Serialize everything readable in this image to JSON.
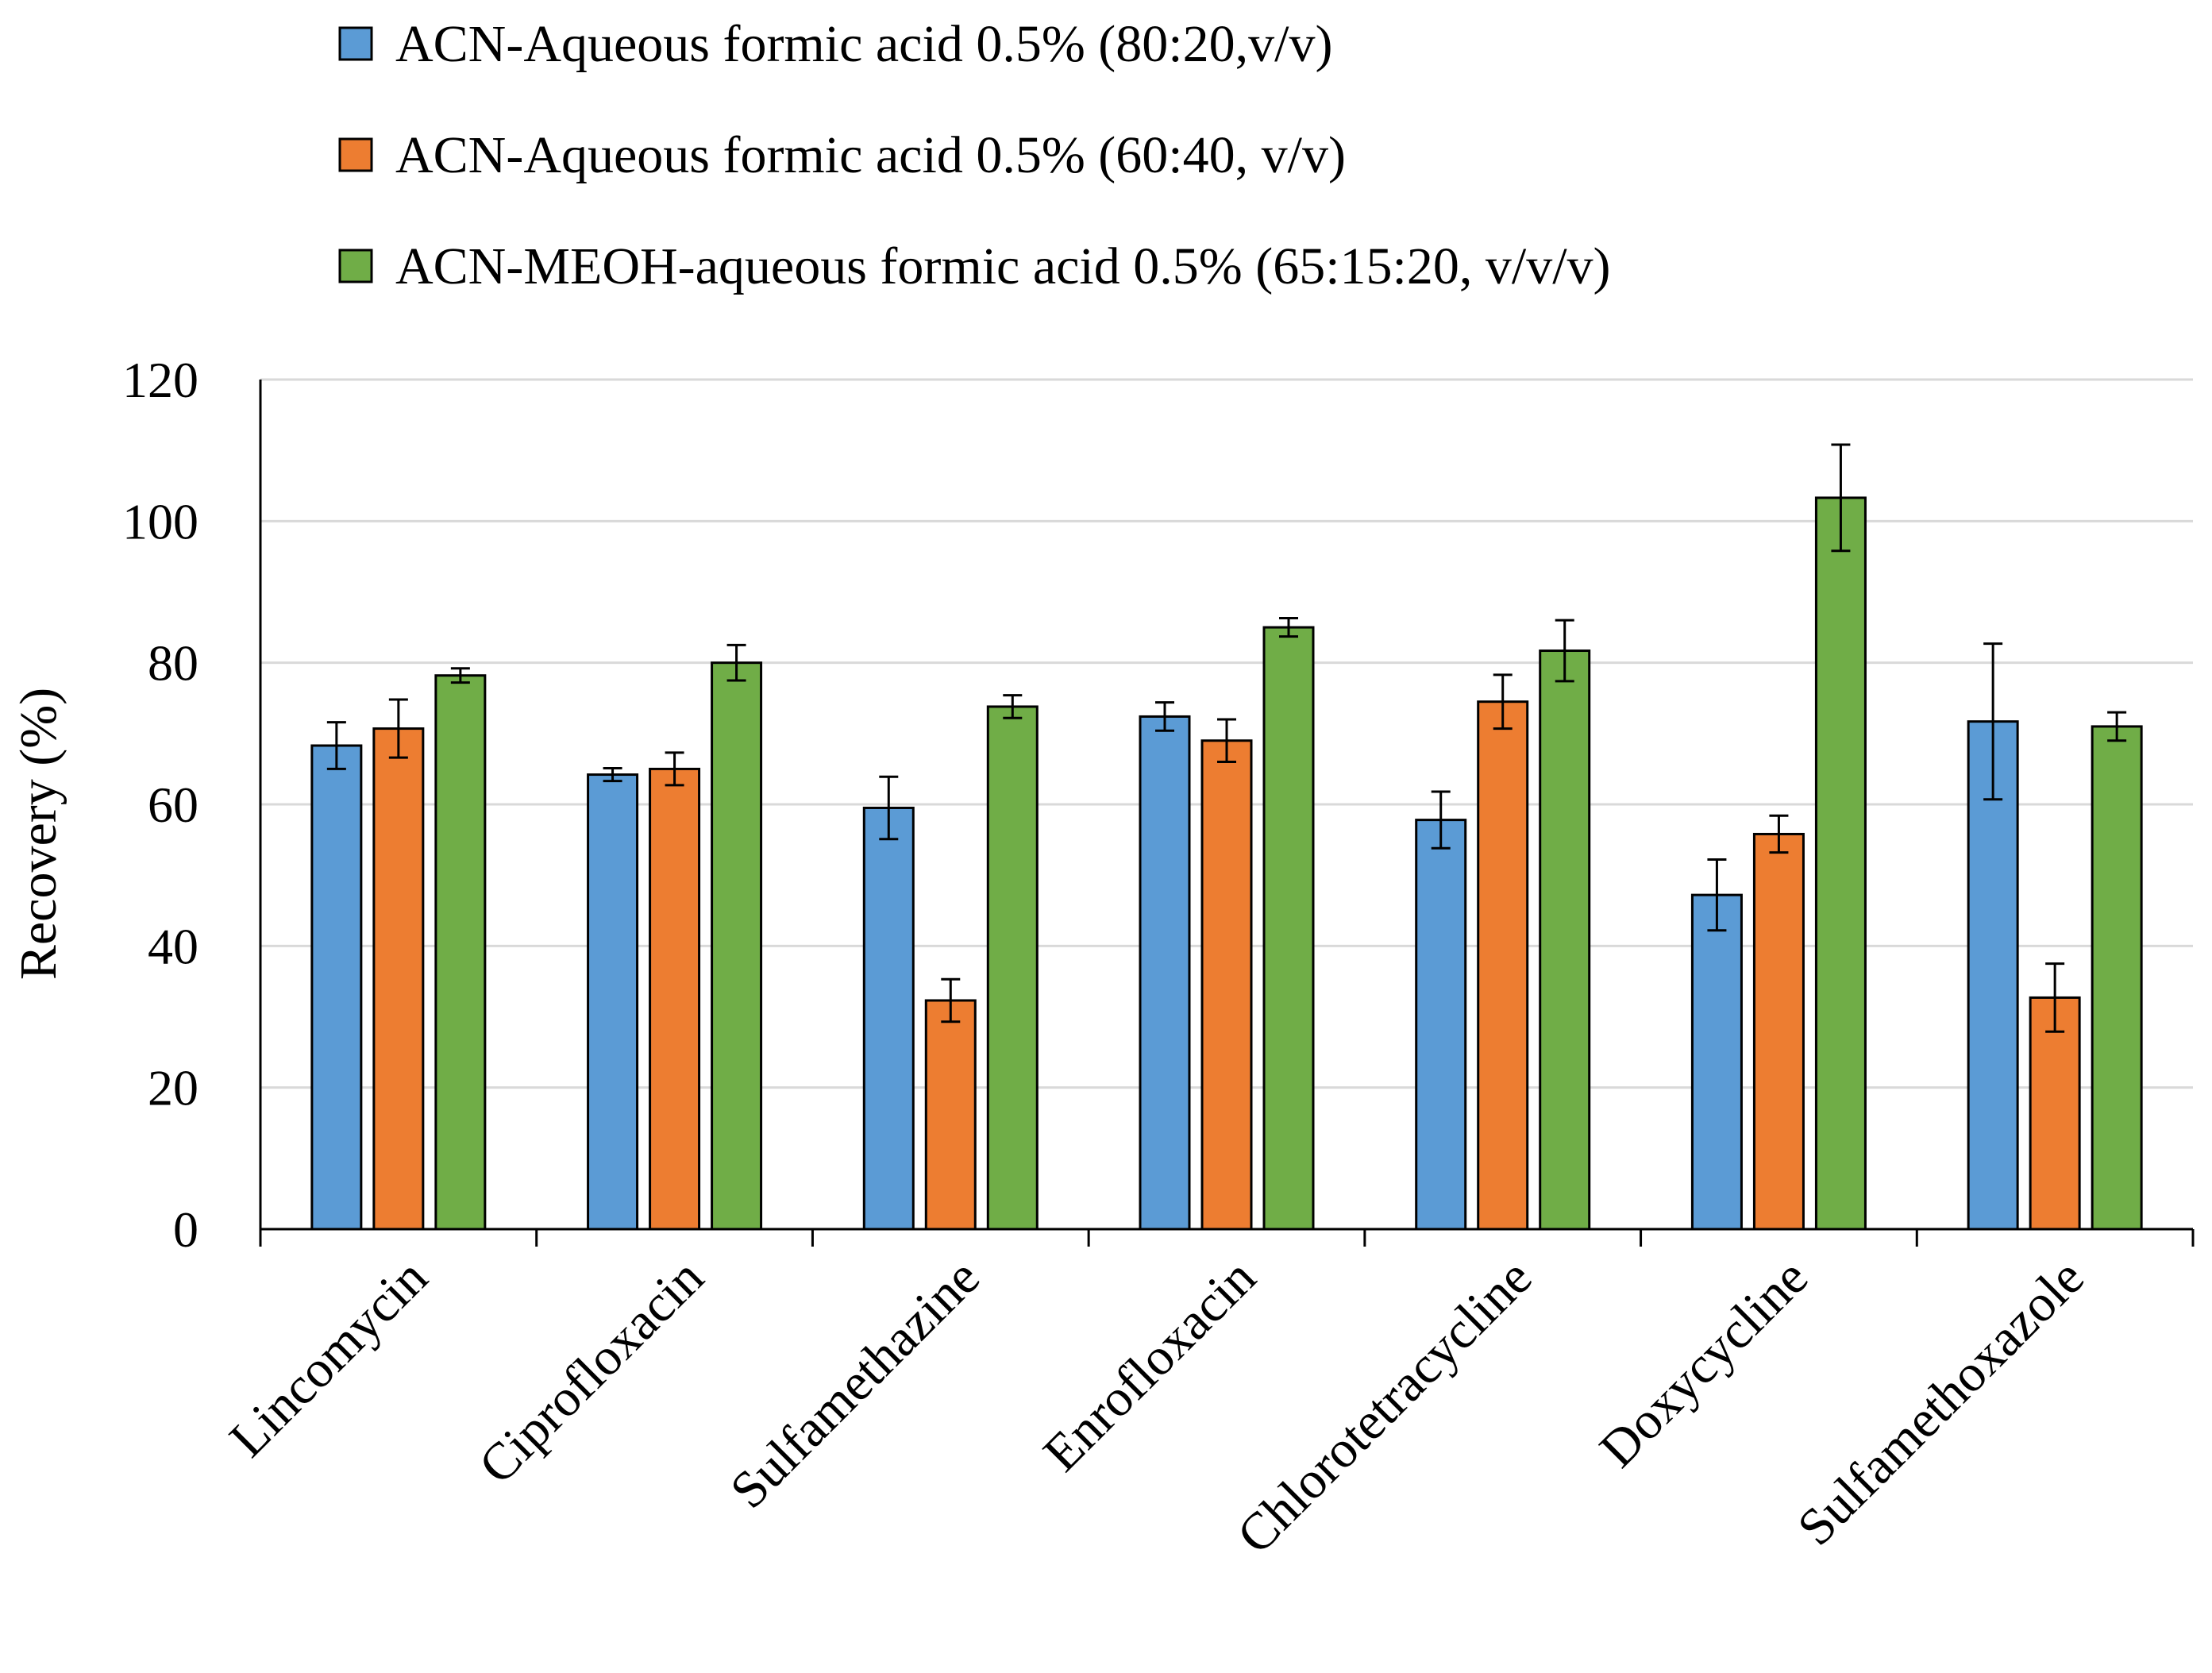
{
  "chart_data": {
    "type": "bar",
    "title": "",
    "xlabel": "",
    "ylabel": "Recovery (%)",
    "ylim": [
      0,
      120
    ],
    "yticks": [
      0,
      20,
      40,
      60,
      80,
      100,
      120
    ],
    "grid": true,
    "legend_position": "top",
    "categories": [
      "Lincomycin",
      "Ciprofloxacin",
      "Sulfamethazine",
      "Enrofloxacin",
      "Chlorotetracycline",
      "Doxycycline",
      "Sulfamethoxazole"
    ],
    "series": [
      {
        "name": "ACN-Aqueous formic acid 0.5% (80:20,v/v)",
        "color": "#5B9BD5",
        "values": [
          68.3,
          64.2,
          59.5,
          72.4,
          57.8,
          47.2,
          71.7
        ],
        "errors": [
          3.3,
          0.9,
          4.4,
          2.0,
          4.0,
          5.0,
          11.0
        ]
      },
      {
        "name": "ACN-Aqueous formic acid 0.5% (60:40, v/v)",
        "color": "#ED7D31",
        "values": [
          70.7,
          65.0,
          32.3,
          69.0,
          74.5,
          55.8,
          32.7
        ],
        "errors": [
          4.1,
          2.3,
          3.0,
          3.0,
          3.8,
          2.6,
          4.8
        ]
      },
      {
        "name": "ACN-MEOH-aqueous formic acid 0.5% (65:15:20, v/v/v)",
        "color": "#70AD47",
        "values": [
          78.2,
          80.0,
          73.8,
          85.0,
          81.7,
          103.3,
          71.0
        ],
        "errors": [
          1.0,
          2.5,
          1.6,
          1.3,
          4.3,
          7.5,
          2.0
        ]
      }
    ]
  }
}
